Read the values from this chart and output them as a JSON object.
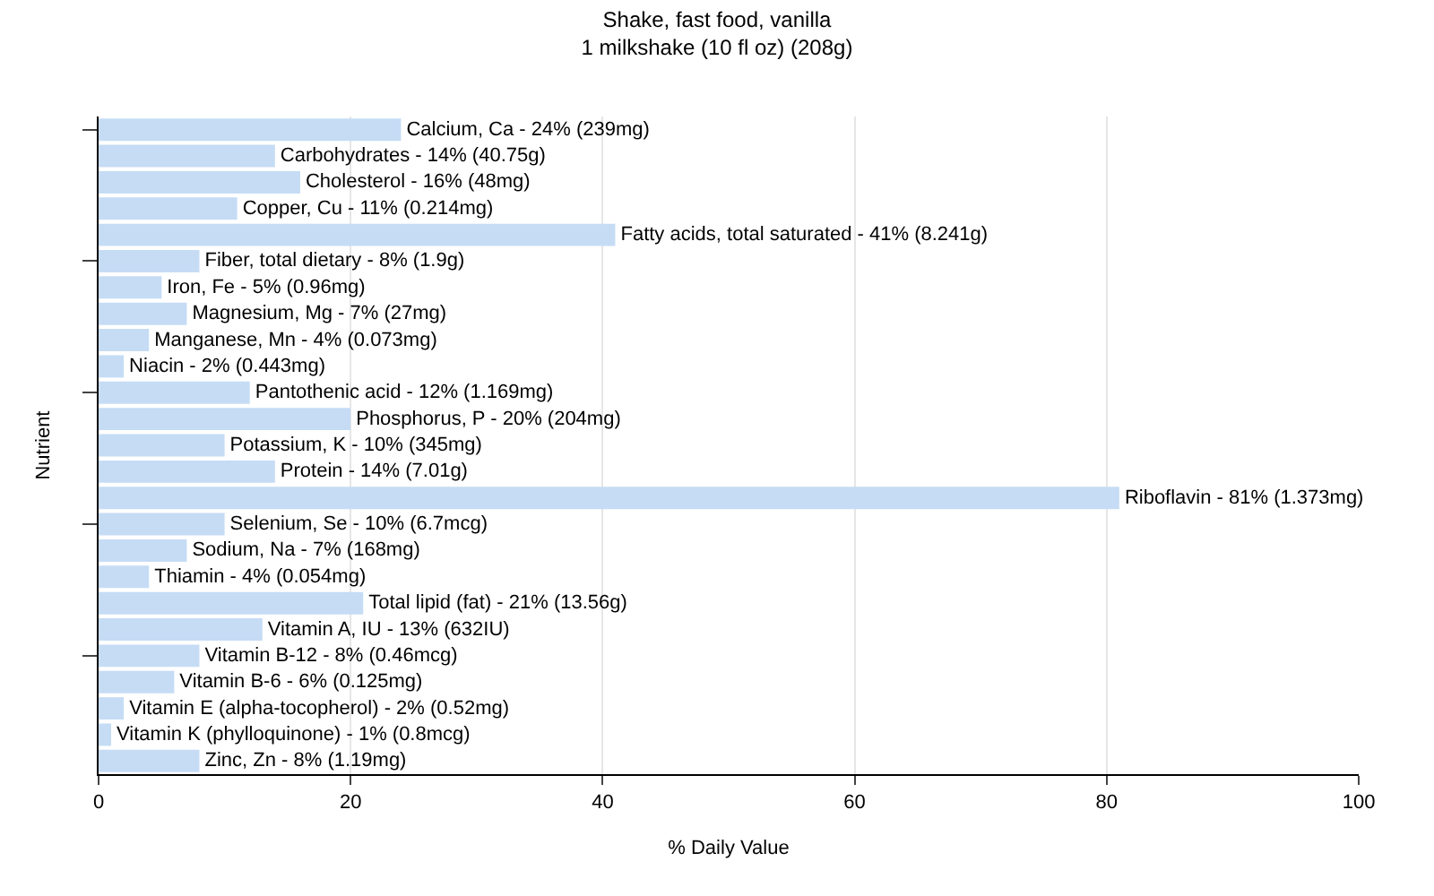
{
  "chart_data": {
    "type": "bar",
    "orientation": "horizontal",
    "title": "Shake, fast food, vanilla\n1 milkshake (10 fl oz) (208g)",
    "xlabel": "% Daily Value",
    "ylabel": "Nutrient",
    "categories": [
      "Calcium, Ca -",
      "Carbohydrates -",
      "Cholesterol -",
      "Copper, Cu -",
      "Fatty acids, total saturated -",
      "Fiber, total dietary -",
      "Iron, Fe -",
      "Magnesium, Mg -",
      "Manganese, Mn -",
      "Niacin -",
      "Pantothenic acid -",
      "Phosphorus, P -",
      "Potassium, K -",
      "Protein -",
      "Riboflavin -",
      "Selenium, Se -",
      "Sodium, Na -",
      "Thiamin -",
      "Total lipid (fat) -",
      "Vitamin A, IU -",
      "Vitamin B-12 -",
      "Vitamin B-6 -",
      "Vitamin E (alpha-tocopherol) -",
      "Vitamin K (phylloquinone) -",
      "Zinc, Zn -"
    ],
    "values": [
      24,
      14,
      16,
      11,
      41,
      8,
      5,
      7,
      4,
      2,
      12,
      20,
      10,
      14,
      81,
      10,
      7,
      4,
      21,
      13,
      8,
      6,
      2,
      1,
      8
    ],
    "value_labels": [
      "24% (239mg)",
      "14% (40.75g)",
      "16% (48mg)",
      "11% (0.214mg)",
      "41% (8.241g)",
      "8% (1.9g)",
      "5% (0.96mg)",
      "7% (27mg)",
      "4% (0.073mg)",
      "2% (0.443mg)",
      "12% (1.169mg)",
      "20% (204mg)",
      "10% (345mg)",
      "14% (7.01g)",
      "81% (1.373mg)",
      "10% (6.7mcg)",
      "7% (168mg)",
      "4% (0.054mg)",
      "21% (13.56g)",
      "13% (632IU)",
      "8% (0.46mcg)",
      "6% (0.125mg)",
      "2% (0.52mg)",
      "1% (0.8mcg)",
      "8% (1.19mg)"
    ],
    "color": "#c6dcf5",
    "xlim": [
      0,
      100
    ],
    "xticks": [
      0,
      20,
      40,
      60,
      80,
      100
    ],
    "grid": "x",
    "tick_labels": "x"
  }
}
